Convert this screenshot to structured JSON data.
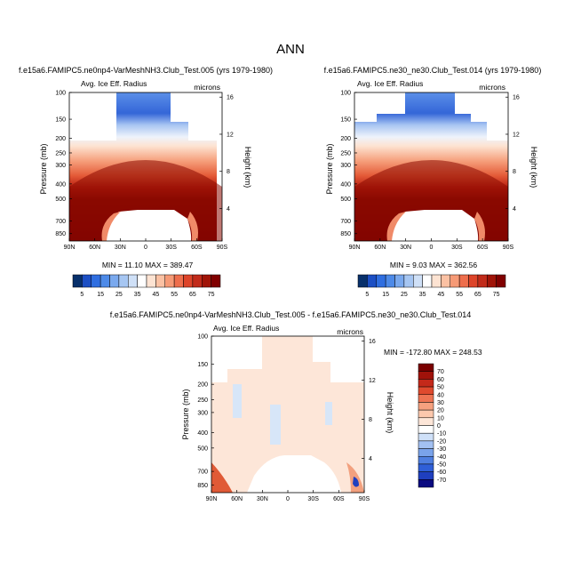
{
  "page_title": "ANN",
  "colors": {
    "positive_scale": [
      "#08306b",
      "#1c4fc4",
      "#2f6ee0",
      "#4d8ae8",
      "#7aa9ee",
      "#a6c6f2",
      "#cfe0f7",
      "#ffffff",
      "#fde3d2",
      "#fbc1a3",
      "#f69a76",
      "#ee6e4c",
      "#dd4429",
      "#c12b1a",
      "#a01408",
      "#800000"
    ],
    "diff_scale": [
      "#0a0a80",
      "#1f3fbf",
      "#2f5fd8",
      "#4f7fe0",
      "#7aa3ea",
      "#a3c1f2",
      "#cfe0f8",
      "#ffffff",
      "#fde6d8",
      "#fcc8ad",
      "#f6a17f",
      "#ee7453",
      "#df4a2e",
      "#c4291a",
      "#a0120a",
      "#7a0000"
    ]
  },
  "chart_data": [
    {
      "type": "heatmap",
      "title": "f.e15a6.FAMIPC5.ne0np4-VarMeshNH3.Club_Test.005 (yrs 1979-1980)",
      "subtitle_left": "Avg. Ice Eff. Radius",
      "subtitle_right": "microns",
      "ylabel": "Pressure (mb)",
      "ylabel_right": "Height (km)",
      "x_ticks": [
        "90N",
        "60N",
        "30N",
        "0",
        "30S",
        "60S",
        "90S"
      ],
      "y_ticks": [
        "100",
        "150",
        "200",
        "250",
        "300",
        "400",
        "500",
        "700",
        "850"
      ],
      "y_ticks_right": [
        "16",
        "12",
        "8",
        "4"
      ],
      "stats": "MIN = 11.10 MAX = 389.47",
      "colorbar": {
        "labels": [
          "5",
          "15",
          "25",
          "35",
          "45",
          "55",
          "65",
          "75"
        ],
        "orientation": "horizontal"
      }
    },
    {
      "type": "heatmap",
      "title": "f.e15a6.FAMIPC5.ne30_ne30.Club_Test.014 (yrs 1979-1980)",
      "subtitle_left": "Avg. Ice Eff. Radius",
      "subtitle_right": "microns",
      "ylabel": "Pressure (mb)",
      "ylabel_right": "Height (km)",
      "x_ticks": [
        "90N",
        "60N",
        "30N",
        "0",
        "30S",
        "60S",
        "90S"
      ],
      "y_ticks": [
        "100",
        "150",
        "200",
        "250",
        "300",
        "400",
        "500",
        "700",
        "850"
      ],
      "y_ticks_right": [
        "16",
        "12",
        "8",
        "4"
      ],
      "stats": "MIN = 9.03 MAX = 362.56",
      "colorbar": {
        "labels": [
          "5",
          "15",
          "25",
          "35",
          "45",
          "55",
          "65",
          "75"
        ],
        "orientation": "horizontal"
      }
    },
    {
      "type": "heatmap",
      "title": "f.e15a6.FAMIPC5.ne0np4-VarMeshNH3.Club_Test.005 - f.e15a6.FAMIPC5.ne30_ne30.Club_Test.014",
      "subtitle_left": "Avg. Ice Eff. Radius",
      "subtitle_right": "microns",
      "ylabel": "Pressure (mb)",
      "ylabel_right": "Height (km)",
      "x_ticks": [
        "90N",
        "60N",
        "30N",
        "0",
        "30S",
        "60S",
        "90S"
      ],
      "y_ticks": [
        "100",
        "150",
        "200",
        "250",
        "300",
        "400",
        "500",
        "700",
        "850"
      ],
      "y_ticks_right": [
        "16",
        "12",
        "8",
        "4"
      ],
      "stats": "MIN = -172.80 MAX = 248.53",
      "colorbar": {
        "labels": [
          "70",
          "60",
          "50",
          "40",
          "30",
          "20",
          "10",
          "0",
          "-10",
          "-20",
          "-30",
          "-40",
          "-50",
          "-60",
          "-70"
        ],
        "orientation": "vertical"
      }
    }
  ]
}
